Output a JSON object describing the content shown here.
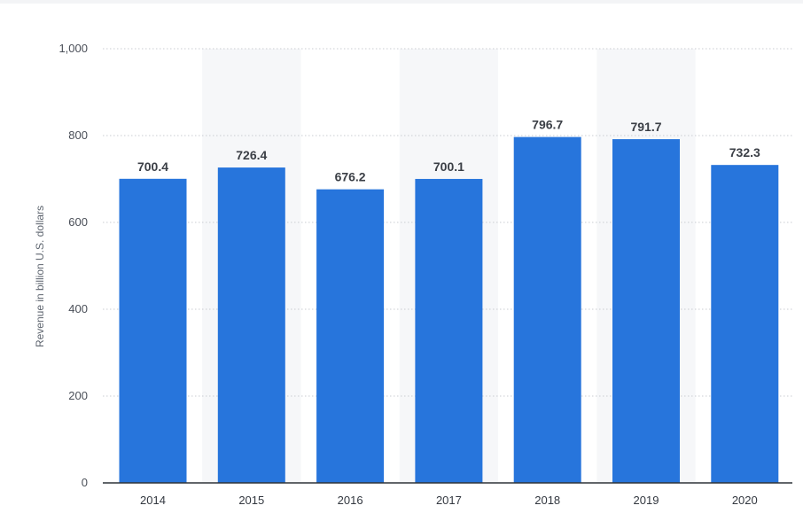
{
  "chart_data": {
    "type": "bar",
    "categories": [
      "2014",
      "2015",
      "2016",
      "2017",
      "2018",
      "2019",
      "2020"
    ],
    "values": [
      700.4,
      726.4,
      676.2,
      700.1,
      796.7,
      791.7,
      732.3
    ],
    "value_labels": [
      "700.4",
      "726.4",
      "676.2",
      "700.1",
      "796.7",
      "791.7",
      "732.3"
    ],
    "title": "",
    "xlabel": "",
    "ylabel": "Revenue in billion U.S. dollars",
    "ylim": [
      0,
      1000
    ],
    "yticks": [
      0,
      200,
      400,
      600,
      800,
      1000
    ],
    "ytick_labels": [
      "0",
      "200",
      "400",
      "600",
      "800",
      "1,000"
    ],
    "grid": true,
    "legend": "none",
    "colors": {
      "bar": "#2775dc",
      "band": "#f6f7f9",
      "grid": "#c9ccd1",
      "axis": "#2f3338"
    }
  }
}
